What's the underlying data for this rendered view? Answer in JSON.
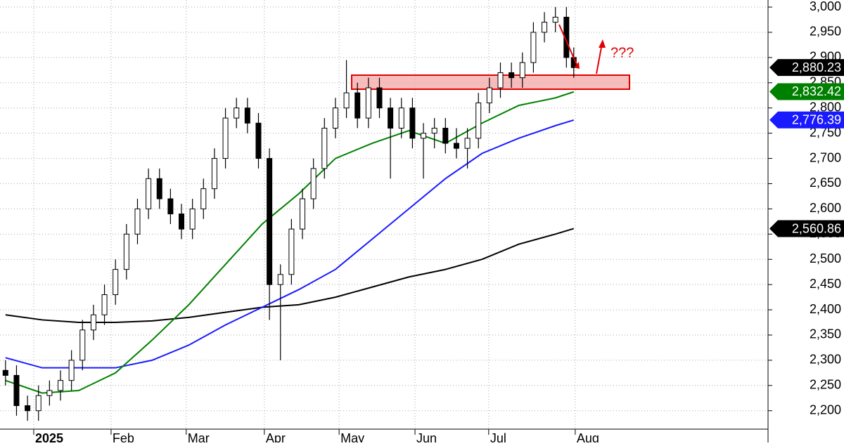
{
  "chart_data": {
    "type": "candlestick",
    "xlim": [
      -1.5,
      208
    ],
    "xticks": [
      {
        "value": 7.7,
        "label": "2025"
      },
      {
        "value": 28.8,
        "label": "Feb"
      },
      {
        "value": 49.3,
        "label": "Mar"
      },
      {
        "value": 70.6,
        "label": "Apr"
      },
      {
        "value": 91,
        "label": "May"
      },
      {
        "value": 111.7,
        "label": "Jun"
      },
      {
        "value": 131.8,
        "label": "Jul"
      },
      {
        "value": 155.4,
        "label": "Aug"
      }
    ],
    "ylim": [
      2137,
      3014
    ],
    "yticks": [
      {
        "value": 2200,
        "label": "2,200"
      },
      {
        "value": 2250,
        "label": "2,250"
      },
      {
        "value": 2300,
        "label": "2,300"
      },
      {
        "value": 2350,
        "label": "2,350"
      },
      {
        "value": 2400,
        "label": "2,400"
      },
      {
        "value": 2450,
        "label": "2,450"
      },
      {
        "value": 2500,
        "label": "2,500"
      },
      {
        "value": 2550,
        "label": "2,550"
      },
      {
        "value": 2600,
        "label": "2,600"
      },
      {
        "value": 2650,
        "label": "2,650"
      },
      {
        "value": 2700,
        "label": "2,700"
      },
      {
        "value": 2750,
        "label": "2,750"
      },
      {
        "value": 2800,
        "label": "2,800"
      },
      {
        "value": 2850,
        "label": "2,850"
      },
      {
        "value": 2900,
        "label": "2,900"
      },
      {
        "value": 2950,
        "label": "2,950"
      },
      {
        "value": 3000,
        "label": "3,000"
      }
    ],
    "grid": true,
    "x": [
      0,
      3,
      6,
      9,
      12,
      15,
      18,
      21,
      24,
      27,
      30,
      33,
      36,
      39,
      42,
      45,
      48,
      51,
      54,
      57,
      60,
      63,
      66,
      69,
      72,
      75,
      78,
      81,
      84,
      87,
      90,
      93,
      96,
      99,
      102,
      105,
      108,
      111,
      114,
      117,
      120,
      123,
      126,
      129,
      132,
      135,
      138,
      141,
      144,
      147,
      150,
      153,
      155
    ],
    "open": [
      2280,
      2270,
      2210,
      2200,
      2230,
      2240,
      2260,
      2300,
      2360,
      2390,
      2430,
      2480,
      2550,
      2600,
      2660,
      2620,
      2590,
      2560,
      2600,
      2640,
      2700,
      2780,
      2800,
      2770,
      2700,
      2450,
      2470,
      2560,
      2620,
      2680,
      2760,
      2800,
      2830,
      2780,
      2840,
      2800,
      2760,
      2800,
      2740,
      2750,
      2760,
      2730,
      2720,
      2740,
      2810,
      2840,
      2870,
      2860,
      2890,
      2950,
      2970,
      2980,
      2900
    ],
    "high": [
      2300,
      2290,
      2230,
      2250,
      2260,
      2280,
      2320,
      2380,
      2410,
      2450,
      2500,
      2570,
      2620,
      2680,
      2680,
      2640,
      2610,
      2620,
      2660,
      2720,
      2800,
      2820,
      2820,
      2790,
      2720,
      2490,
      2580,
      2640,
      2700,
      2780,
      2820,
      2895,
      2850,
      2860,
      2860,
      2820,
      2820,
      2820,
      2770,
      2780,
      2780,
      2760,
      2760,
      2830,
      2860,
      2890,
      2890,
      2910,
      2970,
      2990,
      3000,
      3000,
      2920
    ],
    "low": [
      2250,
      2190,
      2180,
      2180,
      2210,
      2220,
      2240,
      2280,
      2340,
      2370,
      2410,
      2460,
      2530,
      2580,
      2600,
      2570,
      2540,
      2540,
      2580,
      2620,
      2680,
      2760,
      2750,
      2680,
      2380,
      2300,
      2450,
      2540,
      2600,
      2660,
      2740,
      2780,
      2760,
      2760,
      2780,
      2660,
      2740,
      2720,
      2660,
      2720,
      2710,
      2700,
      2680,
      2720,
      2790,
      2820,
      2840,
      2840,
      2870,
      2930,
      2950,
      2880,
      2860
    ],
    "close": [
      2270,
      2210,
      2200,
      2230,
      2240,
      2260,
      2300,
      2360,
      2390,
      2430,
      2480,
      2550,
      2600,
      2660,
      2620,
      2590,
      2560,
      2600,
      2640,
      2700,
      2780,
      2800,
      2770,
      2700,
      2450,
      2470,
      2560,
      2620,
      2680,
      2760,
      2800,
      2830,
      2780,
      2840,
      2800,
      2760,
      2800,
      2740,
      2750,
      2760,
      2730,
      2720,
      2740,
      2810,
      2840,
      2870,
      2860,
      2890,
      2950,
      2970,
      2980,
      2900,
      2880
    ],
    "ma_x": [
      0,
      10,
      20,
      30,
      40,
      50,
      60,
      70,
      80,
      90,
      100,
      110,
      120,
      130,
      140,
      150,
      155
    ],
    "moving_averages": [
      {
        "color": "#000000",
        "values": [
          2390,
          2380,
          2375,
          2375,
          2378,
          2385,
          2395,
          2405,
          2410,
          2425,
          2445,
          2465,
          2480,
          2500,
          2530,
          2550,
          2561
        ]
      },
      {
        "color": "#1a1aff",
        "values": [
          2305,
          2285,
          2285,
          2285,
          2300,
          2330,
          2370,
          2405,
          2440,
          2480,
          2540,
          2600,
          2660,
          2710,
          2740,
          2765,
          2776
        ]
      },
      {
        "color": "#008000",
        "values": [
          2260,
          2235,
          2240,
          2275,
          2340,
          2410,
          2490,
          2570,
          2630,
          2700,
          2730,
          2755,
          2730,
          2770,
          2805,
          2820,
          2832
        ]
      }
    ],
    "price_tags": [
      {
        "value": 2880.23,
        "label": "2,880.23",
        "color": "#000000"
      },
      {
        "value": 2832.42,
        "label": "2,832.42",
        "color": "#008000"
      },
      {
        "value": 2776.39,
        "label": "2,776.39",
        "color": "#1a1aff"
      },
      {
        "value": 2560.86,
        "label": "2,560.86",
        "color": "#000000"
      }
    ],
    "annotation": "???"
  }
}
